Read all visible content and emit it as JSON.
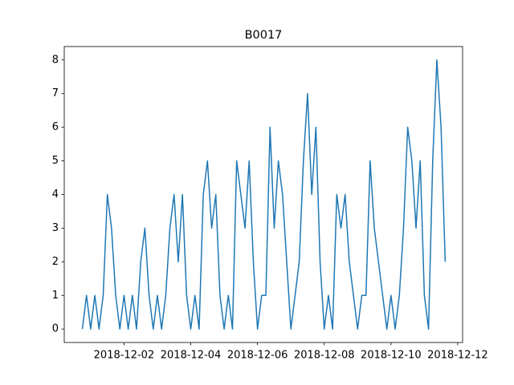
{
  "chart_data": {
    "type": "line",
    "title": "B0017",
    "x": [
      "2018-11-30T18:00",
      "2018-11-30T21:00",
      "2018-12-01T00:00",
      "2018-12-01T03:00",
      "2018-12-01T06:00",
      "2018-12-01T09:00",
      "2018-12-01T12:00",
      "2018-12-01T15:00",
      "2018-12-01T18:00",
      "2018-12-01T21:00",
      "2018-12-02T00:00",
      "2018-12-02T03:00",
      "2018-12-02T06:00",
      "2018-12-02T09:00",
      "2018-12-02T12:00",
      "2018-12-02T15:00",
      "2018-12-02T18:00",
      "2018-12-02T21:00",
      "2018-12-03T00:00",
      "2018-12-03T03:00",
      "2018-12-03T06:00",
      "2018-12-03T09:00",
      "2018-12-03T12:00",
      "2018-12-03T15:00",
      "2018-12-03T18:00",
      "2018-12-03T21:00",
      "2018-12-04T00:00",
      "2018-12-04T03:00",
      "2018-12-04T06:00",
      "2018-12-04T09:00",
      "2018-12-04T12:00",
      "2018-12-04T15:00",
      "2018-12-04T18:00",
      "2018-12-04T21:00",
      "2018-12-05T00:00",
      "2018-12-05T03:00",
      "2018-12-05T06:00",
      "2018-12-05T09:00",
      "2018-12-05T12:00",
      "2018-12-05T15:00",
      "2018-12-05T18:00",
      "2018-12-05T21:00",
      "2018-12-06T00:00",
      "2018-12-06T03:00",
      "2018-12-06T06:00",
      "2018-12-06T09:00",
      "2018-12-06T12:00",
      "2018-12-06T15:00",
      "2018-12-06T18:00",
      "2018-12-06T21:00",
      "2018-12-07T00:00",
      "2018-12-07T03:00",
      "2018-12-07T06:00",
      "2018-12-07T09:00",
      "2018-12-07T12:00",
      "2018-12-07T15:00",
      "2018-12-07T18:00",
      "2018-12-07T21:00",
      "2018-12-08T00:00",
      "2018-12-08T03:00",
      "2018-12-08T06:00",
      "2018-12-08T09:00",
      "2018-12-08T12:00",
      "2018-12-08T15:00",
      "2018-12-08T18:00",
      "2018-12-08T21:00",
      "2018-12-09T00:00",
      "2018-12-09T03:00",
      "2018-12-09T06:00",
      "2018-12-09T09:00",
      "2018-12-09T12:00",
      "2018-12-09T15:00",
      "2018-12-09T18:00",
      "2018-12-09T21:00",
      "2018-12-10T00:00",
      "2018-12-10T03:00",
      "2018-12-10T06:00",
      "2018-12-10T09:00",
      "2018-12-10T12:00",
      "2018-12-10T15:00",
      "2018-12-10T18:00",
      "2018-12-10T21:00",
      "2018-12-11T00:00",
      "2018-12-11T03:00",
      "2018-12-11T06:00",
      "2018-12-11T09:00",
      "2018-12-11T12:00",
      "2018-12-11T15:00"
    ],
    "series": [
      {
        "color": "#1f77b4",
        "values": [
          0,
          1,
          0,
          1,
          0,
          1,
          4,
          3,
          1,
          0,
          1,
          0,
          1,
          0,
          2,
          3,
          1,
          0,
          1,
          0,
          1,
          3,
          4,
          2,
          4,
          1,
          0,
          1,
          0,
          4,
          5,
          3,
          4,
          1,
          0,
          1,
          0,
          5,
          4,
          3,
          5,
          2,
          0,
          1,
          1,
          6,
          3,
          5,
          4,
          2,
          0,
          1,
          2,
          5,
          7,
          4,
          6,
          2,
          0,
          1,
          0,
          4,
          3,
          4,
          2,
          1,
          0,
          1,
          1,
          5,
          3,
          2,
          1,
          0,
          1,
          0,
          1,
          3,
          6,
          5,
          3,
          5,
          1,
          0,
          5,
          8,
          6,
          2
        ]
      }
    ],
    "xlim": [
      "2018-11-30T05:00",
      "2018-12-12T03:30"
    ],
    "xticks": [
      "2018-12-02",
      "2018-12-04",
      "2018-12-06",
      "2018-12-08",
      "2018-12-10",
      "2018-12-12"
    ],
    "ylim": [
      -0.4,
      8.4
    ],
    "yticks": [
      0,
      1,
      2,
      3,
      4,
      5,
      6,
      7,
      8
    ],
    "grid": false
  }
}
